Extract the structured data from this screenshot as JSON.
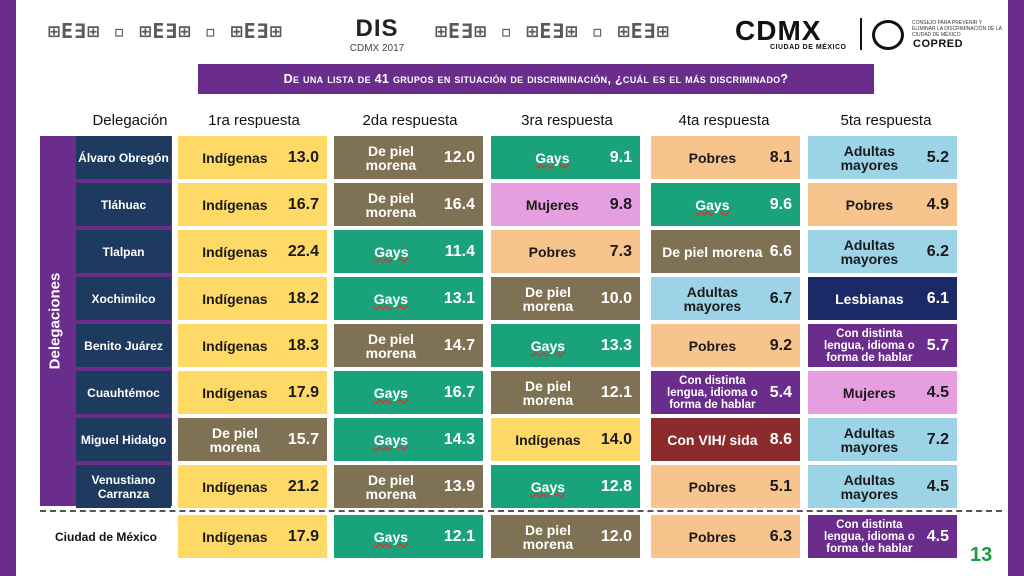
{
  "header": {
    "dis_logo": "DIS",
    "dis_year": "CDMX 2017",
    "cdmx": "CDMX",
    "cdmx_sub": "CIUDAD DE MÉXICO",
    "copred": "COPRED",
    "copred_small": "CONSEJO PARA PREVENIR Y ELIMINAR LA DISCRIMINACIÓN DE LA CIUDAD DE MÉXICO"
  },
  "question": "De una lista de 41 grupos en situación de discriminación, ¿cuál es el más discriminado?",
  "columns": [
    "Delegación",
    "1ra respuesta",
    "2da respuesta",
    "3ra respuesta",
    "4ta respuesta",
    "5ta respuesta"
  ],
  "side_label": "Delegaciones",
  "rows": [
    {
      "name": "Álvaro Obregón",
      "cells": [
        {
          "label": "Indígenas",
          "value": "13.0",
          "cls": "c-indig"
        },
        {
          "label": "De piel morena",
          "value": "12.0",
          "cls": "c-piel"
        },
        {
          "label": "Gays",
          "value": "9.1",
          "cls": "c-gays"
        },
        {
          "label": "Pobres",
          "value": "8.1",
          "cls": "c-pob"
        },
        {
          "label": "Adultas mayores",
          "value": "5.2",
          "cls": "c-adul"
        }
      ]
    },
    {
      "name": "Tláhuac",
      "cells": [
        {
          "label": "Indígenas",
          "value": "16.7",
          "cls": "c-indig"
        },
        {
          "label": "De piel morena",
          "value": "16.4",
          "cls": "c-piel"
        },
        {
          "label": "Mujeres",
          "value": "9.8",
          "cls": "c-muj"
        },
        {
          "label": "Gays",
          "value": "9.6",
          "cls": "c-gays"
        },
        {
          "label": "Pobres",
          "value": "4.9",
          "cls": "c-pob"
        }
      ]
    },
    {
      "name": "Tlalpan",
      "cells": [
        {
          "label": "Indígenas",
          "value": "22.4",
          "cls": "c-indig"
        },
        {
          "label": "Gays",
          "value": "11.4",
          "cls": "c-gays"
        },
        {
          "label": "Pobres",
          "value": "7.3",
          "cls": "c-pob"
        },
        {
          "label": "De piel morena",
          "value": "6.6",
          "cls": "c-piel"
        },
        {
          "label": "Adultas mayores",
          "value": "6.2",
          "cls": "c-adul"
        }
      ]
    },
    {
      "name": "Xochimilco",
      "cells": [
        {
          "label": "Indígenas",
          "value": "18.2",
          "cls": "c-indig"
        },
        {
          "label": "Gays",
          "value": "13.1",
          "cls": "c-gays"
        },
        {
          "label": "De piel morena",
          "value": "10.0",
          "cls": "c-piel"
        },
        {
          "label": "Adultas mayores",
          "value": "6.7",
          "cls": "c-adul"
        },
        {
          "label": "Lesbianas",
          "value": "6.1",
          "cls": "c-lesb"
        }
      ]
    },
    {
      "name": "Benito Juárez",
      "cells": [
        {
          "label": "Indígenas",
          "value": "18.3",
          "cls": "c-indig"
        },
        {
          "label": "De piel morena",
          "value": "14.7",
          "cls": "c-piel"
        },
        {
          "label": "Gays",
          "value": "13.3",
          "cls": "c-gays"
        },
        {
          "label": "Pobres",
          "value": "9.2",
          "cls": "c-pob"
        },
        {
          "label": "Con distinta lengua, idioma o forma de hablar",
          "value": "5.7",
          "cls": "c-leng"
        }
      ]
    },
    {
      "name": "Cuauhtémoc",
      "cells": [
        {
          "label": "Indígenas",
          "value": "17.9",
          "cls": "c-indig"
        },
        {
          "label": "Gays",
          "value": "16.7",
          "cls": "c-gays"
        },
        {
          "label": "De piel morena",
          "value": "12.1",
          "cls": "c-piel"
        },
        {
          "label": "Con distinta lengua, idioma o forma de hablar",
          "value": "5.4",
          "cls": "c-leng"
        },
        {
          "label": "Mujeres",
          "value": "4.5",
          "cls": "c-muj"
        }
      ]
    },
    {
      "name": "Miguel Hidalgo",
      "cells": [
        {
          "label": "De piel morena",
          "value": "15.7",
          "cls": "c-piel"
        },
        {
          "label": "Gays",
          "value": "14.3",
          "cls": "c-gays"
        },
        {
          "label": "Indígenas",
          "value": "14.0",
          "cls": "c-indig"
        },
        {
          "label": "Con VIH/ sida",
          "value": "8.6",
          "cls": "c-vih"
        },
        {
          "label": "Adultas mayores",
          "value": "7.2",
          "cls": "c-adul"
        }
      ]
    },
    {
      "name": "Venustiano Carranza",
      "cells": [
        {
          "label": "Indígenas",
          "value": "21.2",
          "cls": "c-indig"
        },
        {
          "label": "De piel morena",
          "value": "13.9",
          "cls": "c-piel"
        },
        {
          "label": "Gays",
          "value": "12.8",
          "cls": "c-gays"
        },
        {
          "label": "Pobres",
          "value": "5.1",
          "cls": "c-pob"
        },
        {
          "label": "Adultas mayores",
          "value": "4.5",
          "cls": "c-adul"
        }
      ]
    }
  ],
  "cdmx_row": {
    "name": "Ciudad de México",
    "cells": [
      {
        "label": "Indígenas",
        "value": "17.9",
        "cls": "c-indig"
      },
      {
        "label": "Gays",
        "value": "12.1",
        "cls": "c-gays"
      },
      {
        "label": "De piel morena",
        "value": "12.0",
        "cls": "c-piel"
      },
      {
        "label": "Pobres",
        "value": "6.3",
        "cls": "c-pob"
      },
      {
        "label": "Con distinta lengua, idioma o forma de hablar",
        "value": "4.5",
        "cls": "c-leng"
      }
    ]
  },
  "page_number": "13"
}
